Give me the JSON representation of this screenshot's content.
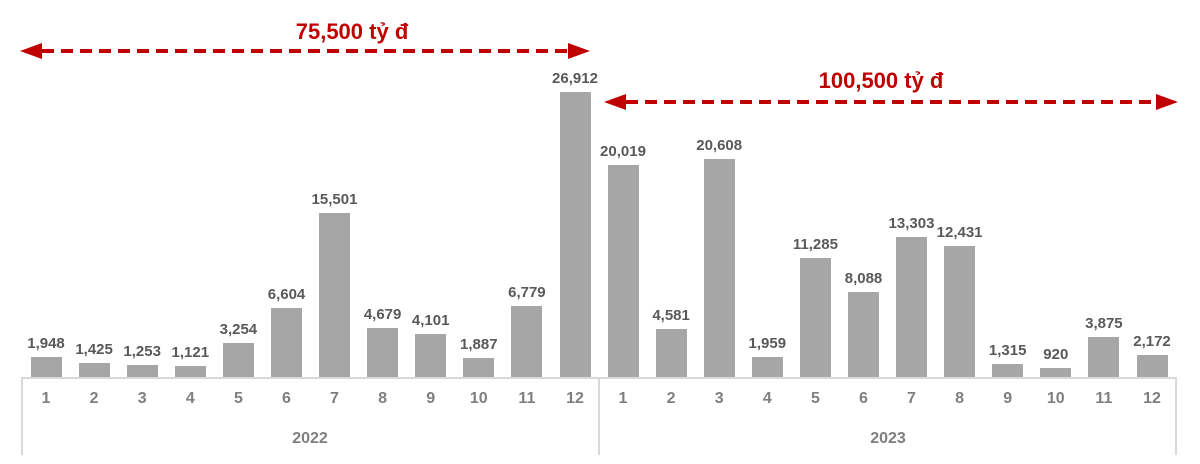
{
  "chart_data": {
    "type": "bar",
    "title": "",
    "xlabel": "",
    "ylabel": "",
    "unit": "tỷ đ",
    "ylim": [
      0,
      26912
    ],
    "grid": false,
    "legend": false,
    "groups": [
      {
        "year": "2022",
        "categories": [
          "1",
          "2",
          "3",
          "4",
          "5",
          "6",
          "7",
          "8",
          "9",
          "10",
          "11",
          "12"
        ],
        "values": [
          1948,
          1425,
          1253,
          1121,
          3254,
          6604,
          15501,
          4679,
          4101,
          1887,
          6779,
          26912
        ]
      },
      {
        "year": "2023",
        "categories": [
          "1",
          "2",
          "3",
          "4",
          "5",
          "6",
          "7",
          "8",
          "9",
          "10",
          "11",
          "12"
        ],
        "values": [
          20019,
          4581,
          20608,
          1959,
          11285,
          8088,
          13303,
          12431,
          1315,
          920,
          3875,
          2172
        ]
      }
    ],
    "annotations": [
      {
        "label": "75,500 tỷ đ",
        "target_year": "2022"
      },
      {
        "label": "100,500 tỷ đ",
        "target_year": "2023"
      }
    ],
    "colors": {
      "bar": "#A6A6A6",
      "value_label": "#595959",
      "category_label": "#7F7F7F",
      "axis_line": "#D9D9D9",
      "annotation": "#C00000"
    }
  }
}
